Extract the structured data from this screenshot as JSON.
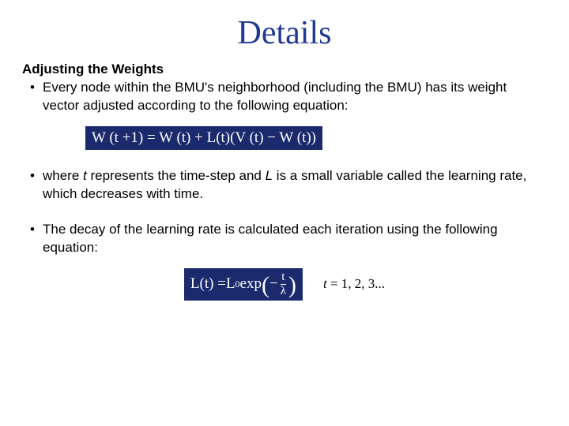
{
  "title": "Details",
  "subtitle": "Adjusting the Weights",
  "bullets": {
    "b1": "Every node within the BMU's neighborhood (including the BMU) has its weight vector adjusted according to the following equation:",
    "b2_pre": "where ",
    "b2_t": "t",
    "b2_mid": " represents the time-step and ",
    "b2_L": "L",
    "b2_post": " is a small variable called the learning rate, which decreases with time.",
    "b3": "The decay of the learning rate is calculated each iteration using the following equation:"
  },
  "equations": {
    "eq1": {
      "text": "W (t +1) = W (t) + L(t)(V (t) − W (t))",
      "background": "#1a2a6c",
      "text_color": "#ffffff",
      "font": "Times New Roman",
      "fontsize": 19
    },
    "eq2": {
      "L": "L",
      "t_open": "(",
      "t": "t",
      "t_close": ") = ",
      "L0_L": "L",
      "L0_sub": "0",
      "exp": " exp",
      "lparen": "(",
      "frac_num": "t",
      "frac_den": "λ",
      "neg": "−",
      "rparen": ")",
      "background": "#1a2a6c",
      "text_color": "#ffffff"
    },
    "eq2_trail_var": "t ",
    "eq2_trail_rest": "= 1, 2, 3..."
  },
  "colors": {
    "title": "#1f3a93",
    "body": "#000000",
    "eq_bg": "#1a2a6c",
    "eq_fg": "#ffffff",
    "page_bg": "#ffffff"
  }
}
